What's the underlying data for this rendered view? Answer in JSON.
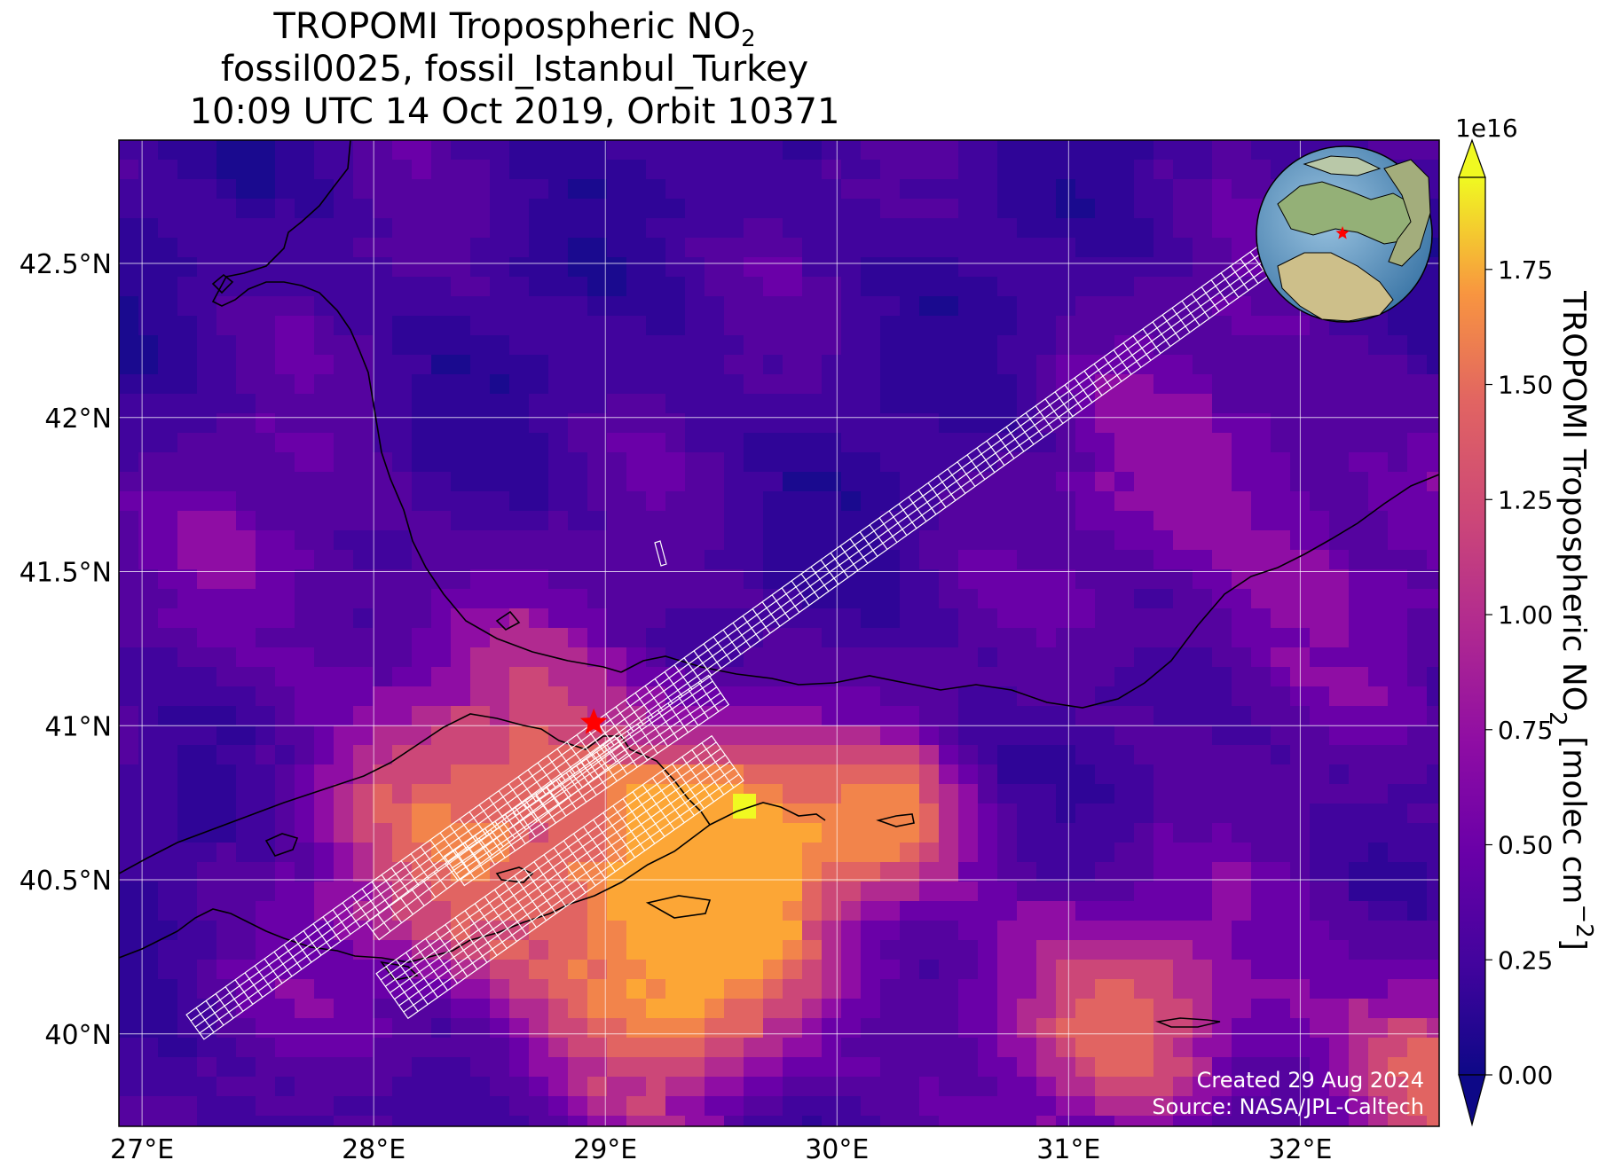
{
  "title": {
    "line1_text": "TROPOMI Tropospheric NO",
    "line1_sub": "2",
    "line2": "fossil0025, fossil_Istanbul_Turkey",
    "line3": "10:09 UTC 14 Oct 2019, Orbit 10371"
  },
  "map": {
    "lon_range": [
      26.9,
      32.6
    ],
    "lat_range": [
      39.7,
      42.9
    ],
    "lon_ticks": [
      {
        "value": 27,
        "label": "27°E"
      },
      {
        "value": 28,
        "label": "28°E"
      },
      {
        "value": 29,
        "label": "29°E"
      },
      {
        "value": 30,
        "label": "30°E"
      },
      {
        "value": 31,
        "label": "31°E"
      },
      {
        "value": 32,
        "label": "32°E"
      }
    ],
    "lat_ticks": [
      {
        "value": 42.5,
        "label": "42.5°N"
      },
      {
        "value": 42.0,
        "label": "42°N"
      },
      {
        "value": 41.5,
        "label": "41.5°N"
      },
      {
        "value": 41.0,
        "label": "41°N"
      },
      {
        "value": 40.5,
        "label": "40.5°N"
      },
      {
        "value": 40.0,
        "label": "40°N"
      }
    ],
    "target_marker": {
      "lon": 28.95,
      "lat": 41.01,
      "color": "#ff0000",
      "icon": "star-icon"
    },
    "background_color": "#2c0494",
    "gridline_color": "#ffffff",
    "coastline_color": "#000000",
    "footprint_color": "#ffffff"
  },
  "colorbar": {
    "label_text": "TROPOMI Tropospheric NO",
    "label_sub": "2",
    "label_unit": " [molec cm",
    "label_sup": "−2",
    "label_end": "]",
    "exponent": "1e16",
    "min": 0.0,
    "max": 1.95,
    "extend": "both",
    "colormap": "plasma",
    "ticks": [
      {
        "value": 0.0,
        "label": "0.00"
      },
      {
        "value": 0.25,
        "label": "0.25"
      },
      {
        "value": 0.5,
        "label": "0.50"
      },
      {
        "value": 0.75,
        "label": "0.75"
      },
      {
        "value": 1.0,
        "label": "1.00"
      },
      {
        "value": 1.25,
        "label": "1.25"
      },
      {
        "value": 1.5,
        "label": "1.50"
      },
      {
        "value": 1.75,
        "label": "1.75"
      }
    ]
  },
  "inset_globe": {
    "icon": "globe-icon",
    "marker_color": "#ff0000"
  },
  "credits": {
    "created": "Created 29 Aug 2024",
    "source": "Source: NASA/JPL-Caltech"
  }
}
